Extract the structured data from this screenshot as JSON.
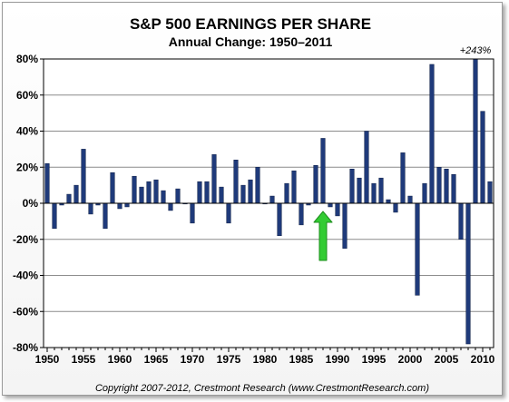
{
  "chart_data": {
    "type": "bar",
    "title": "S&P 500 EARNINGS PER SHARE",
    "subtitle": "Annual Change: 1950–2011",
    "xlabel": "",
    "ylabel": "",
    "ylim": [
      -80,
      80
    ],
    "y_ticks": [
      80,
      60,
      40,
      20,
      0,
      -20,
      -40,
      -60,
      -80
    ],
    "y_tick_labels": [
      "80%",
      "60%",
      "40%",
      "20%",
      "0%",
      "-20%",
      "-40%",
      "-60%",
      "-80%"
    ],
    "x_tick_labels": [
      "1950",
      "1955",
      "1960",
      "1965",
      "1970",
      "1975",
      "1980",
      "1985",
      "1990",
      "1995",
      "2000",
      "2005",
      "2010"
    ],
    "grid": true,
    "bar_color": "#1f3a7a",
    "annotations": [
      {
        "year": 2009,
        "text": "+243%"
      },
      {
        "year": 1988,
        "kind": "arrow",
        "color": "#33cc33"
      }
    ],
    "footer": "Copyright 2007-2012, Crestmont Research (www.CrestmontResearch.com)",
    "categories": [
      1950,
      1951,
      1952,
      1953,
      1954,
      1955,
      1956,
      1957,
      1958,
      1959,
      1960,
      1961,
      1962,
      1963,
      1964,
      1965,
      1966,
      1967,
      1968,
      1969,
      1970,
      1971,
      1972,
      1973,
      1974,
      1975,
      1976,
      1977,
      1978,
      1979,
      1980,
      1981,
      1982,
      1983,
      1984,
      1985,
      1986,
      1987,
      1988,
      1989,
      1990,
      1991,
      1992,
      1993,
      1994,
      1995,
      1996,
      1997,
      1998,
      1999,
      2000,
      2001,
      2002,
      2003,
      2004,
      2005,
      2006,
      2007,
      2008,
      2009,
      2010,
      2011
    ],
    "values": [
      22,
      -14,
      -1,
      5,
      10,
      30,
      -6,
      -1,
      -14,
      17,
      -3,
      -2,
      15,
      9,
      12,
      13,
      7,
      -4,
      8,
      0,
      -11,
      12,
      12,
      27,
      9,
      -11,
      24,
      10,
      13,
      20,
      0,
      4,
      -18,
      11,
      18,
      -12,
      -1,
      21,
      36,
      -2,
      -7,
      -25,
      19,
      14,
      40,
      11,
      14,
      2,
      -5,
      28,
      4,
      -51,
      11,
      77,
      20,
      19,
      16,
      -20,
      -78,
      80,
      51,
      12
    ]
  }
}
